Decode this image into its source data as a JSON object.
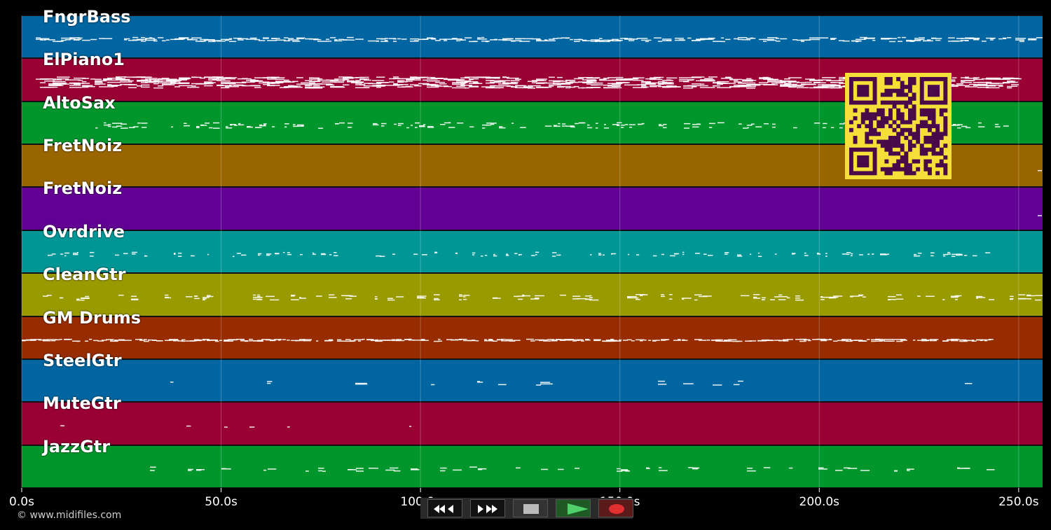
{
  "tracks": [
    {
      "name": "FngrBass",
      "color": "#0065a0"
    },
    {
      "name": "ElPiano1",
      "color": "#990033"
    },
    {
      "name": "AltoSax",
      "color": "#00962c"
    },
    {
      "name": "FretNoiz",
      "color": "#996500"
    },
    {
      "name": "FretNoiz",
      "color": "#620094"
    },
    {
      "name": "Ovrdrive",
      "color": "#009696"
    },
    {
      "name": "CleanGtr",
      "color": "#999900"
    },
    {
      "name": "GM Drums",
      "color": "#962c00"
    },
    {
      "name": "SteelGtr",
      "color": "#0065a0"
    },
    {
      "name": "MuteGtr",
      "color": "#990033"
    },
    {
      "name": "JazzGtr",
      "color": "#00962c"
    }
  ],
  "timeline": {
    "ticks": [
      "0.0s",
      "50.0s",
      "100.0s",
      "150.0s",
      "200.0s",
      "250.0s"
    ],
    "tick_values": [
      0,
      50,
      100,
      150,
      200,
      250
    ],
    "max_seconds": 256
  },
  "copyright": "© www.midifiles.com",
  "transport": {
    "rewind_icon": "rewind-icon",
    "fast_forward_icon": "fast-forward-icon",
    "stop_icon": "stop-icon",
    "play_icon": "play-icon",
    "record_icon": "record-icon"
  },
  "qr_code": {
    "color": "#f5e03a",
    "module_color": "#4a0a4a"
  }
}
